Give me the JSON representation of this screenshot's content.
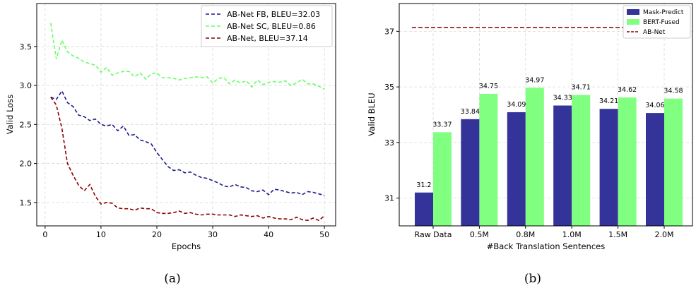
{
  "chart_data": [
    {
      "type": "line",
      "xlabel": "Epochs",
      "ylabel": "Valid Loss",
      "xlim": [
        -1.5,
        52
      ],
      "ylim": [
        1.2,
        4.05
      ],
      "xticks": [
        0,
        10,
        20,
        30,
        40,
        50
      ],
      "yticks": [
        1.5,
        2.0,
        2.5,
        3.0,
        3.5
      ],
      "ytick_labels": [
        "1.5",
        "2.0",
        "2.5",
        "3.0",
        "3.5"
      ],
      "grid": true,
      "legend_position": "top-right",
      "caption": "(a)",
      "x": [
        1,
        2,
        3,
        4,
        5,
        6,
        7,
        8,
        9,
        10,
        11,
        12,
        13,
        14,
        15,
        16,
        17,
        18,
        19,
        20,
        21,
        22,
        23,
        24,
        25,
        26,
        27,
        28,
        29,
        30,
        31,
        32,
        33,
        34,
        35,
        36,
        37,
        38,
        39,
        40,
        41,
        42,
        43,
        44,
        45,
        46,
        47,
        48,
        49,
        50
      ],
      "series": [
        {
          "name": "AB-Net FB, BLEU=32.03",
          "color": "#1a1a8c",
          "values": [
            2.85,
            2.82,
            2.93,
            2.78,
            2.73,
            2.62,
            2.6,
            2.55,
            2.57,
            2.5,
            2.48,
            2.5,
            2.42,
            2.48,
            2.36,
            2.37,
            2.3,
            2.28,
            2.25,
            2.14,
            2.05,
            1.96,
            1.91,
            1.92,
            1.88,
            1.89,
            1.85,
            1.82,
            1.81,
            1.78,
            1.75,
            1.71,
            1.7,
            1.73,
            1.7,
            1.69,
            1.65,
            1.64,
            1.66,
            1.6,
            1.67,
            1.66,
            1.64,
            1.62,
            1.63,
            1.6,
            1.64,
            1.63,
            1.61,
            1.59
          ]
        },
        {
          "name": "AB-Net SC, BLEU=0.86",
          "color": "#66ff66",
          "values": [
            3.8,
            3.34,
            3.58,
            3.43,
            3.38,
            3.35,
            3.3,
            3.28,
            3.26,
            3.17,
            3.23,
            3.13,
            3.16,
            3.18,
            3.18,
            3.11,
            3.16,
            3.08,
            3.15,
            3.16,
            3.1,
            3.1,
            3.09,
            3.07,
            3.09,
            3.1,
            3.11,
            3.1,
            3.11,
            3.03,
            3.09,
            3.1,
            3.02,
            3.07,
            3.03,
            3.06,
            2.98,
            3.07,
            3.01,
            3.04,
            3.05,
            3.04,
            3.06,
            3.0,
            3.03,
            3.08,
            3.02,
            3.02,
            2.99,
            2.95
          ]
        },
        {
          "name": "AB-Net, BLEU=37.14",
          "color": "#8b0000",
          "values": [
            2.85,
            2.75,
            2.45,
            2.0,
            1.85,
            1.72,
            1.65,
            1.73,
            1.58,
            1.48,
            1.5,
            1.49,
            1.43,
            1.42,
            1.42,
            1.4,
            1.43,
            1.42,
            1.42,
            1.37,
            1.36,
            1.36,
            1.37,
            1.39,
            1.36,
            1.37,
            1.35,
            1.34,
            1.35,
            1.35,
            1.34,
            1.34,
            1.34,
            1.32,
            1.34,
            1.33,
            1.32,
            1.33,
            1.3,
            1.32,
            1.3,
            1.29,
            1.29,
            1.28,
            1.31,
            1.28,
            1.27,
            1.3,
            1.27,
            1.33
          ]
        }
      ]
    },
    {
      "type": "bar",
      "xlabel": "#Back Translation Sentences",
      "ylabel": "Valid BLEU",
      "ylim": [
        30.0,
        38.0
      ],
      "yticks": [
        31,
        33,
        35,
        37
      ],
      "grid": true,
      "legend_position": "top-right",
      "caption": "(b)",
      "categories": [
        "Raw Data",
        "0.5M",
        "0.8M",
        "1.0M",
        "1.5M",
        "2.0M"
      ],
      "series": [
        {
          "name": "Mask-Predict",
          "color": "#333399",
          "values": [
            31.2,
            33.84,
            34.09,
            34.33,
            34.21,
            34.06
          ],
          "labels": [
            "31.2",
            "33.84",
            "34.09",
            "34.33",
            "34.21",
            "34.06"
          ]
        },
        {
          "name": "BERT-Fused",
          "color": "#80ff80",
          "values": [
            33.37,
            34.75,
            34.97,
            34.71,
            34.62,
            34.58
          ],
          "labels": [
            "33.37",
            "34.75",
            "34.97",
            "34.71",
            "34.62",
            "34.58"
          ]
        }
      ],
      "reference_line": {
        "name": "AB-Net",
        "value": 37.14,
        "color": "#8b0000"
      }
    }
  ]
}
